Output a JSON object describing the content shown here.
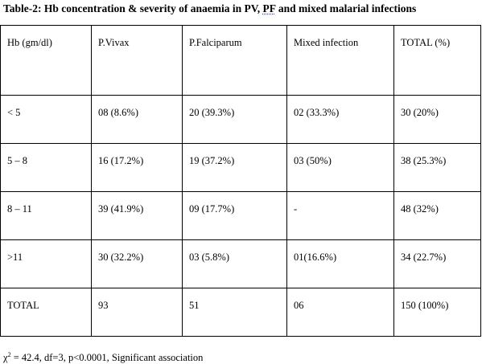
{
  "caption": {
    "prefix": "Table-2: Hb concentration & severity of anaemia in PV, ",
    "pf": "PF",
    "suffix": " and mixed malarial infections"
  },
  "table": {
    "headers": [
      "Hb (gm/dl)",
      "P.Vivax",
      "P.Falciparum",
      "Mixed infection",
      "TOTAL (%)"
    ],
    "rows": [
      [
        "< 5",
        "08 (8.6%)",
        "20 (39.3%)",
        "02 (33.3%)",
        "30 (20%)"
      ],
      [
        "5 – 8",
        "16 (17.2%)",
        "19 (37.2%)",
        "03 (50%)",
        "38 (25.3%)"
      ],
      [
        "8 – 11",
        "39 (41.9%)",
        "09 (17.7%)",
        "-",
        "48 (32%)"
      ],
      [
        ">11",
        "30 (32.2%)",
        "03 (5.8%)",
        "01(16.6%)",
        "34 (22.7%)"
      ],
      [
        "TOTAL",
        "93",
        "51",
        "06",
        "150 (100%)"
      ]
    ]
  },
  "footnote": {
    "chi": "χ",
    "sup": "2",
    "text": " = 42.4, df=3, p<0.0001, Significant association"
  }
}
